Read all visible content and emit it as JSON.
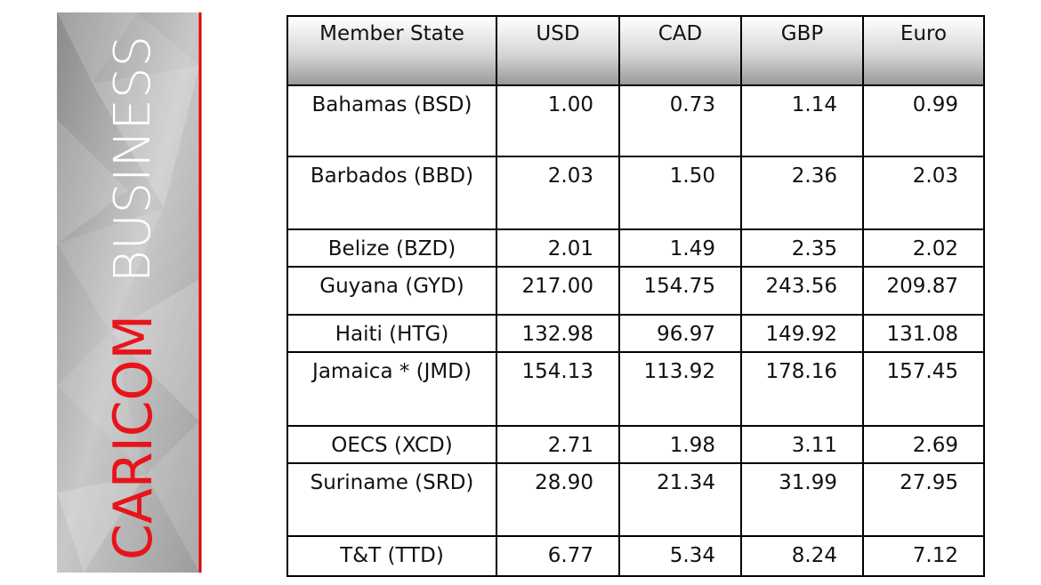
{
  "sidebar": {
    "brand": "CARICOM",
    "tagline": "BUSINESS"
  },
  "table": {
    "columns": [
      "Member State",
      "USD",
      "CAD",
      "GBP",
      "Euro"
    ],
    "rows": [
      [
        "Bahamas (BSD)",
        "1.00",
        "0.73",
        "1.14",
        "0.99"
      ],
      [
        "Barbados (BBD)",
        "2.03",
        "1.50",
        "2.36",
        "2.03"
      ],
      [
        "Belize (BZD)",
        "2.01",
        "1.49",
        "2.35",
        "2.02"
      ],
      [
        "Guyana (GYD)",
        "217.00",
        "154.75",
        "243.56",
        "209.87"
      ],
      [
        "Haiti (HTG)",
        "132.98",
        "96.97",
        "149.92",
        "131.08"
      ],
      [
        "Jamaica * (JMD)",
        "154.13",
        "113.92",
        "178.16",
        "157.45"
      ],
      [
        "OECS (XCD)",
        "2.71",
        "1.98",
        "3.11",
        "2.69"
      ],
      [
        "Suriname (SRD)",
        "28.90",
        "21.34",
        "31.99",
        "27.95"
      ],
      [
        "T&T (TTD)",
        "6.77",
        "5.34",
        "8.24",
        "7.12"
      ]
    ]
  }
}
